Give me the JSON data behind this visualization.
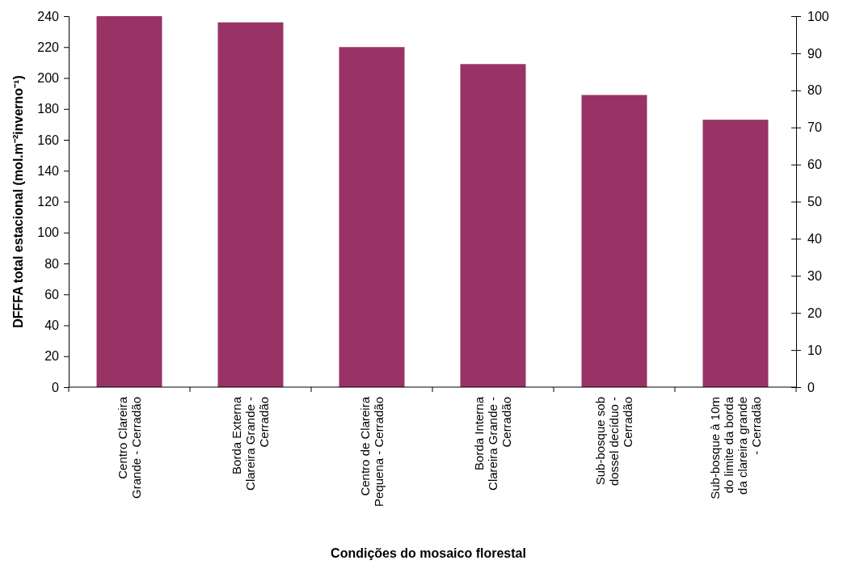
{
  "chart_data": {
    "type": "bar",
    "xlabel": "Condições do mosaico florestal",
    "ylabel": "DFFFA total estacional (mol.m⁻²inverno⁻¹)",
    "categories": [
      "Centro Clareira Grande - Cerradão",
      "Borda Externa Clareira Grande - Cerradão",
      "Centro de Clareira Pequena - Cerradão",
      "Borda Interna Clareira Grande - Cerradão",
      "Sub-bosque sob dossel decíduo - Cerradão",
      "Sub-bosque à 10m do limite da borda da clareira grande - Cerradão"
    ],
    "values": [
      240,
      236,
      220,
      209,
      189,
      173
    ],
    "color": "#993366",
    "ylim": [
      0,
      240
    ],
    "yticks": [
      0,
      20,
      40,
      60,
      80,
      100,
      120,
      140,
      160,
      180,
      200,
      220,
      240
    ],
    "y2lim": [
      0,
      100
    ],
    "y2ticks": [
      0,
      10,
      20,
      30,
      40,
      50,
      60,
      70,
      80,
      90,
      100
    ],
    "grid": false
  }
}
